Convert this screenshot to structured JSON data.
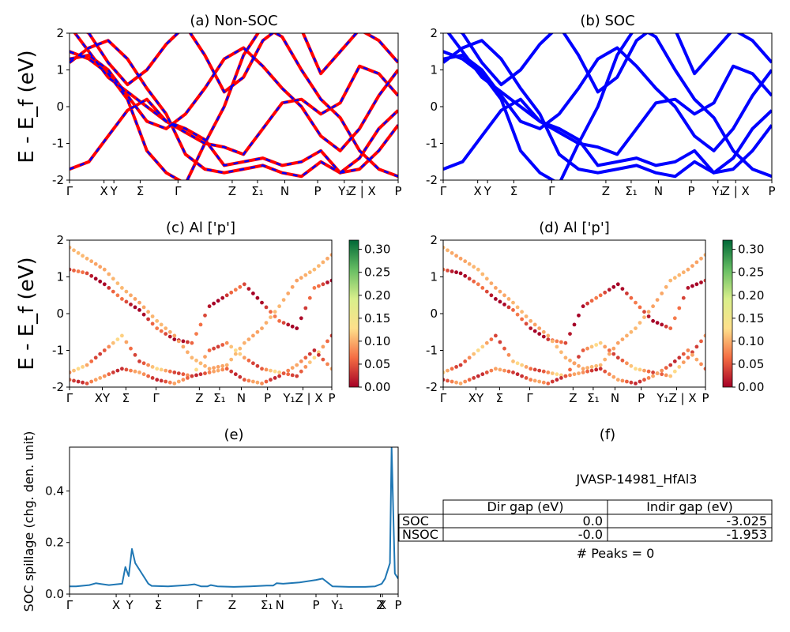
{
  "chart_data": [
    {
      "type": "line",
      "title": "(a) Non-SOC",
      "ylabel": "E - E_f (eV)",
      "ylim": [
        -2,
        2
      ],
      "yticks": [
        "-2",
        "-1",
        "0",
        "1",
        "2"
      ],
      "xticks": [
        "Γ",
        "X",
        "Y",
        "Σ",
        "Γ",
        "Z",
        "Σ₁",
        "N",
        "P",
        "Y₁",
        "Z | X",
        "P"
      ],
      "series": [
        {
          "color": "#ff0000",
          "style": "solid",
          "x": [
            0,
            0.08,
            0.16,
            0.26,
            0.38,
            0.5,
            0.58,
            0.68,
            0.78,
            0.86,
            0.94,
            1.0
          ],
          "y": [
            1.3,
            1.5,
            0.2,
            -0.5,
            -0.8,
            -0.4,
            0.8,
            0.4,
            -0.1,
            1.2,
            0.7,
            0.3
          ]
        },
        {
          "color": "#0000ff",
          "style": "dashed",
          "x": [
            0,
            0.08,
            0.16,
            0.26,
            0.38,
            0.5,
            0.58,
            0.68,
            0.78,
            0.86,
            0.94,
            1.0
          ],
          "y": [
            1.3,
            1.5,
            0.2,
            -0.5,
            -0.8,
            -0.4,
            0.8,
            0.4,
            -0.1,
            1.2,
            0.7,
            0.3
          ]
        }
      ]
    },
    {
      "type": "line",
      "title": "(b) SOC",
      "ylim": [
        -2,
        2
      ],
      "yticks": [
        "-2",
        "-1",
        "0",
        "1",
        "2"
      ],
      "xticks": [
        "Γ",
        "X",
        "Y",
        "Σ",
        "Γ",
        "Z",
        "Σ₁",
        "N",
        "P",
        "Y₁",
        "Z | X",
        "P"
      ],
      "series": [
        {
          "color": "#0000ff",
          "style": "solid",
          "x": [
            0,
            0.08,
            0.16,
            0.26,
            0.38,
            0.5,
            0.58,
            0.68,
            0.78,
            0.86,
            0.94,
            1.0
          ],
          "y": [
            1.2,
            1.5,
            0.2,
            -0.5,
            -0.8,
            -0.4,
            0.8,
            0.4,
            -0.1,
            1.2,
            0.7,
            0.3
          ]
        }
      ]
    },
    {
      "type": "scatter",
      "title": "(c)  Al ['p']",
      "ylabel": "E - E_f (eV)",
      "ylim": [
        -2,
        2
      ],
      "yticks": [
        "-2",
        "-1",
        "0",
        "1",
        "2"
      ],
      "xticks": [
        "Γ",
        "XY",
        "Σ",
        "Γ",
        "Z",
        "Σ₁",
        "N",
        "P",
        "Y₁Z | X",
        "P"
      ],
      "colorbar": {
        "min": 0.0,
        "max": 0.32,
        "ticks": [
          "0.00",
          "0.05",
          "0.10",
          "0.15",
          "0.20",
          "0.25",
          "0.30"
        ],
        "colormap": "RdYlGn"
      }
    },
    {
      "type": "scatter",
      "title": "(d) Al ['p']",
      "ylim": [
        -2,
        2
      ],
      "yticks": [
        "-2",
        "-1",
        "0",
        "1",
        "2"
      ],
      "xticks": [
        "Γ",
        "XY",
        "Σ",
        "Γ",
        "Z",
        "Σ₁",
        "N",
        "P",
        "Y₁Z | X",
        "P"
      ],
      "colorbar": {
        "min": 0.0,
        "max": 0.32,
        "ticks": [
          "0.00",
          "0.05",
          "0.10",
          "0.15",
          "0.20",
          "0.25",
          "0.30"
        ],
        "colormap": "RdYlGn"
      }
    },
    {
      "type": "line",
      "title": "(e)",
      "ylabel": "SOC spillage (chg. den. unit)",
      "ylim": [
        0,
        0.57
      ],
      "yticks": [
        "0.0",
        "0.2",
        "0.4"
      ],
      "xticks": [
        "Γ",
        "X",
        "Y",
        "Σ",
        "Γ",
        "Z",
        "Σ₁",
        "N",
        "P",
        "Y₁",
        "Z",
        "X",
        "P"
      ],
      "series": [
        {
          "color": "#1f77b4",
          "x": [
            0,
            0.02,
            0.06,
            0.08,
            0.12,
            0.16,
            0.17,
            0.18,
            0.19,
            0.2,
            0.22,
            0.24,
            0.25,
            0.3,
            0.36,
            0.38,
            0.4,
            0.42,
            0.43,
            0.45,
            0.5,
            0.55,
            0.6,
            0.62,
            0.63,
            0.65,
            0.7,
            0.75,
            0.77,
            0.8,
            0.85,
            0.9,
            0.93,
            0.95,
            0.96,
            0.975,
            0.98,
            0.99,
            1.0
          ],
          "y": [
            0.03,
            0.03,
            0.035,
            0.042,
            0.035,
            0.04,
            0.105,
            0.07,
            0.175,
            0.12,
            0.08,
            0.04,
            0.032,
            0.03,
            0.035,
            0.038,
            0.03,
            0.03,
            0.035,
            0.03,
            0.028,
            0.03,
            0.033,
            0.033,
            0.042,
            0.04,
            0.045,
            0.055,
            0.06,
            0.03,
            0.028,
            0.028,
            0.03,
            0.04,
            0.06,
            0.12,
            0.57,
            0.08,
            0.06
          ]
        }
      ]
    }
  ],
  "panel_f": {
    "title": "(f)",
    "material": "JVASP-14981_HfAl3",
    "col_headers": [
      "Dir gap (eV)",
      "Indir gap (eV)"
    ],
    "rows": [
      {
        "label": "SOC",
        "dir": "0.0",
        "indir": "-3.025"
      },
      {
        "label": "NSOC",
        "dir": "-0.0",
        "indir": "-1.953"
      }
    ],
    "peaks": "# Peaks = 0"
  }
}
